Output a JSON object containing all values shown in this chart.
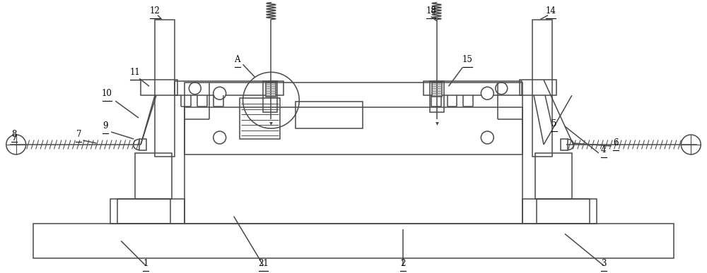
{
  "bg_color": "#ffffff",
  "line_color": "#4a4a4a",
  "line_width": 1.1,
  "fig_width": 10.0,
  "fig_height": 3.87,
  "dpi": 100
}
